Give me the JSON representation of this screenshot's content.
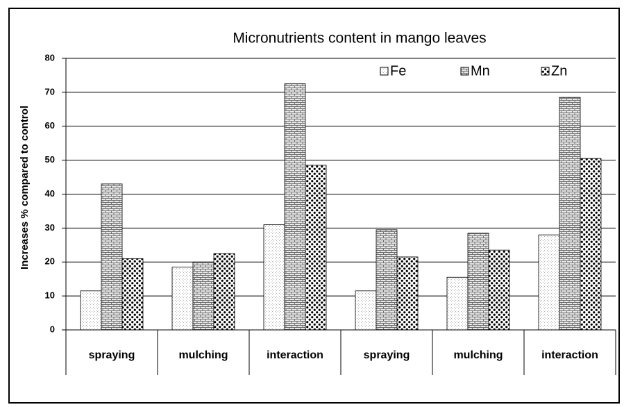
{
  "chart_data": {
    "type": "bar",
    "title": "Micronutrients content in mango leaves",
    "y_label": "Increases % compared to control",
    "categories": [
      "spraying",
      "mulching",
      "interaction",
      "spraying",
      "mulching",
      "interaction"
    ],
    "series": [
      {
        "name": "Fe",
        "color": "#b0b0b0",
        "values": [
          11.5,
          18.5,
          31,
          11.5,
          15.5,
          28
        ]
      },
      {
        "name": "Mn",
        "color": "#707070",
        "values": [
          43,
          20,
          72.5,
          29.5,
          28.5,
          68.5
        ]
      },
      {
        "name": "Zn",
        "color": "#000000",
        "values": [
          21,
          22.5,
          48.5,
          21.5,
          23.5,
          50.5
        ]
      }
    ],
    "ylim": [
      0,
      80
    ],
    "yticks": [
      0,
      10,
      20,
      30,
      40,
      50,
      60,
      70,
      80
    ],
    "grid": true,
    "legend": "top-right"
  }
}
